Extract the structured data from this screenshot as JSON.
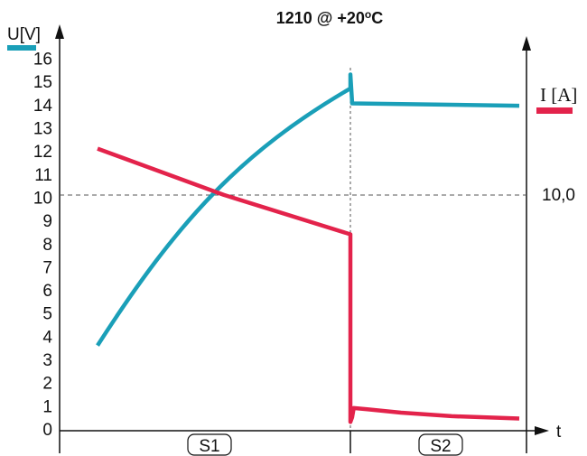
{
  "chart_data": {
    "type": "line",
    "title_parts": [
      "1210 @ +20",
      "o",
      "C"
    ],
    "y_left_label": "U[V]",
    "y_right_label": "I [A]",
    "x_label": "t",
    "y_ticks": [
      "0",
      "1",
      "2",
      "3",
      "4",
      "5",
      "6",
      "7",
      "8",
      "9",
      "10",
      "11",
      "12",
      "13",
      "14",
      "15",
      "16"
    ],
    "ylim": [
      0,
      16
    ],
    "right_reference_label": "10,0",
    "reference_level": 10,
    "phase_labels": [
      "S1",
      "S2"
    ],
    "grid": false,
    "colors": {
      "voltage": "#1a9fb8",
      "current": "#e3234b",
      "axis": "#111111"
    },
    "series": [
      {
        "key": "voltage",
        "x": [
          0,
          0.25,
          0.5,
          0.75,
          1.0,
          1.0,
          1.01,
          1.01,
          2.0
        ],
        "values": [
          3.6,
          6.6,
          9.2,
          12.0,
          14.7,
          15.3,
          14.1,
          14.05,
          13.95
        ]
      },
      {
        "key": "current",
        "x": [
          0,
          0.5,
          1.0,
          1.0,
          1.01,
          1.02,
          1.1,
          1.3,
          1.6,
          2.0
        ],
        "values": [
          12.1,
          10.1,
          8.4,
          0.3,
          0.5,
          0.9,
          0.85,
          0.7,
          0.55,
          0.45
        ]
      }
    ]
  }
}
